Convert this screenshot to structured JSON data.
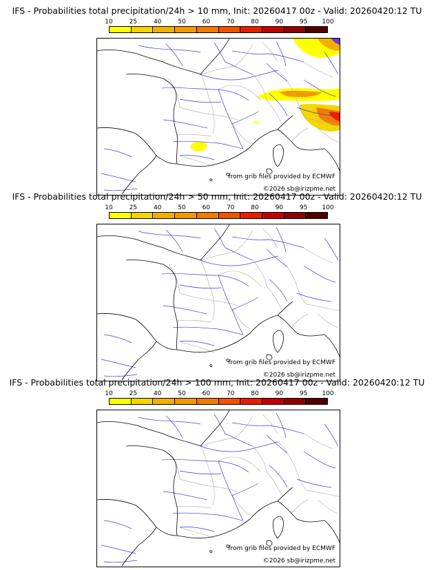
{
  "panels": [
    {
      "title": "IFS - Probabilities total precipitation/24h > 10 mm, Init: 20260417 00z - Valid: 20260420:12 TU",
      "precip": "10mm"
    },
    {
      "title": "IFS - Probabilities total precipitation/24h > 50 mm, Init: 20260417 00z - Valid: 20260420:12 TU",
      "precip": "none"
    },
    {
      "title": "IFS - Probabilities total precipitation/24h > 100 mm, Init: 20260417 00z - Valid: 20260420:12 TU",
      "precip": "none"
    }
  ],
  "colorbar": {
    "labels": [
      "10",
      "25",
      "40",
      "50",
      "60",
      "70",
      "80",
      "90",
      "95",
      "100"
    ],
    "colors": [
      "#ffff00",
      "#f5d400",
      "#f1b000",
      "#f09a00",
      "#ee7c00",
      "#ef5300",
      "#e71d00",
      "#c20000",
      "#8e0000",
      "#4e0000"
    ]
  },
  "credits": {
    "line1": "from grib files provided by ECMWF",
    "line2": "©2026 sb@irizpme.net"
  },
  "colors": {
    "coast": "#000000",
    "rivers": "#3a3ad6",
    "borders": "#b5b5b5"
  }
}
